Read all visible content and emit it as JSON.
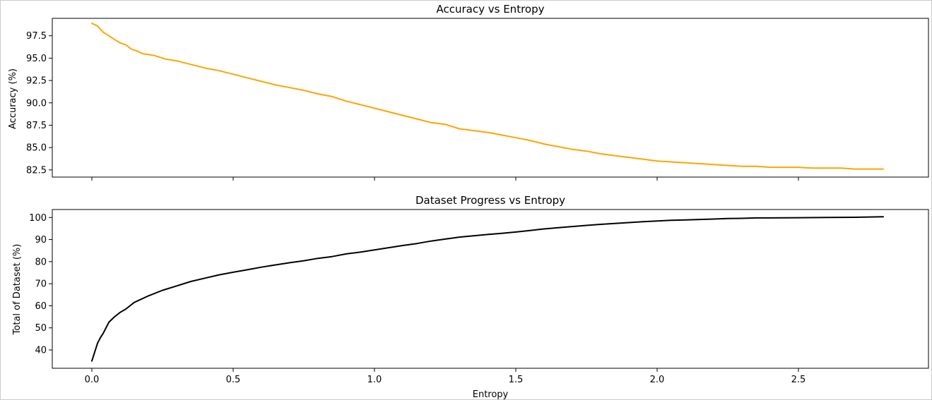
{
  "chart_data": [
    {
      "type": "line",
      "title": "Accuracy vs Entropy",
      "xlabel": "",
      "ylabel": "Accuracy (%)",
      "xlim": [
        -0.14,
        2.96
      ],
      "ylim": [
        81.7,
        99.45
      ],
      "xticks": [
        0.0,
        0.5,
        1.0,
        1.5,
        2.0,
        2.5
      ],
      "xtick_labels_shown": false,
      "yticks": [
        82.5,
        85.0,
        87.5,
        90.0,
        92.5,
        95.0,
        97.5
      ],
      "ytick_labels": [
        "82.5",
        "85.0",
        "87.5",
        "90.0",
        "92.5",
        "95.0",
        "97.5"
      ],
      "grid": false,
      "series": [
        {
          "color": "#ffa500",
          "x": [
            0.0,
            0.02,
            0.04,
            0.06,
            0.08,
            0.1,
            0.12,
            0.14,
            0.16,
            0.18,
            0.2,
            0.22,
            0.24,
            0.26,
            0.3,
            0.35,
            0.4,
            0.45,
            0.5,
            0.55,
            0.6,
            0.65,
            0.7,
            0.75,
            0.8,
            0.85,
            0.9,
            0.95,
            1.0,
            1.05,
            1.1,
            1.15,
            1.2,
            1.25,
            1.3,
            1.35,
            1.4,
            1.45,
            1.5,
            1.55,
            1.6,
            1.65,
            1.7,
            1.75,
            1.8,
            1.85,
            1.9,
            1.95,
            2.0,
            2.05,
            2.1,
            2.15,
            2.2,
            2.25,
            2.3,
            2.35,
            2.4,
            2.45,
            2.5,
            2.55,
            2.6,
            2.65,
            2.7,
            2.75,
            2.8
          ],
          "y": [
            98.9,
            98.6,
            97.9,
            97.5,
            97.1,
            96.7,
            96.5,
            96.0,
            95.8,
            95.5,
            95.4,
            95.3,
            95.1,
            94.9,
            94.7,
            94.3,
            93.9,
            93.6,
            93.2,
            92.8,
            92.4,
            92.0,
            91.7,
            91.4,
            91.0,
            90.7,
            90.2,
            89.8,
            89.4,
            89.0,
            88.6,
            88.2,
            87.8,
            87.6,
            87.1,
            86.9,
            86.7,
            86.4,
            86.1,
            85.8,
            85.4,
            85.1,
            84.8,
            84.6,
            84.3,
            84.1,
            83.9,
            83.7,
            83.5,
            83.4,
            83.3,
            83.2,
            83.1,
            83.0,
            82.9,
            82.9,
            82.8,
            82.8,
            82.8,
            82.7,
            82.7,
            82.7,
            82.6,
            82.6,
            82.6
          ]
        }
      ]
    },
    {
      "type": "line",
      "title": "Dataset Progress vs Entropy",
      "xlabel": "Entropy",
      "ylabel": "Total of Dataset (%)",
      "xlim": [
        -0.14,
        2.96
      ],
      "ylim": [
        31.7,
        103.6
      ],
      "xticks": [
        0.0,
        0.5,
        1.0,
        1.5,
        2.0,
        2.5
      ],
      "xtick_labels": [
        "0.0",
        "0.5",
        "1.0",
        "1.5",
        "2.0",
        "2.5"
      ],
      "yticks": [
        40,
        50,
        60,
        70,
        80,
        90,
        100
      ],
      "ytick_labels": [
        "40",
        "50",
        "60",
        "70",
        "80",
        "90",
        "100"
      ],
      "grid": false,
      "series": [
        {
          "color": "#000000",
          "x": [
            0.0,
            0.01,
            0.02,
            0.03,
            0.04,
            0.06,
            0.08,
            0.1,
            0.12,
            0.15,
            0.2,
            0.25,
            0.3,
            0.35,
            0.4,
            0.45,
            0.5,
            0.55,
            0.6,
            0.65,
            0.7,
            0.75,
            0.8,
            0.85,
            0.9,
            0.95,
            1.0,
            1.05,
            1.1,
            1.15,
            1.2,
            1.25,
            1.3,
            1.35,
            1.4,
            1.45,
            1.5,
            1.55,
            1.6,
            1.65,
            1.7,
            1.75,
            1.8,
            1.85,
            1.9,
            1.95,
            2.0,
            2.05,
            2.1,
            2.15,
            2.2,
            2.25,
            2.3,
            2.35,
            2.4,
            2.5,
            2.6,
            2.7,
            2.8
          ],
          "y": [
            35.0,
            39.0,
            43.0,
            45.5,
            47.5,
            52.5,
            55.0,
            57.0,
            58.5,
            61.5,
            64.5,
            67.0,
            69.0,
            71.0,
            72.5,
            74.0,
            75.2,
            76.3,
            77.5,
            78.5,
            79.5,
            80.4,
            81.5,
            82.3,
            83.5,
            84.3,
            85.3,
            86.3,
            87.3,
            88.2,
            89.3,
            90.2,
            91.1,
            91.7,
            92.3,
            92.8,
            93.4,
            94.1,
            94.8,
            95.4,
            95.9,
            96.4,
            96.9,
            97.3,
            97.7,
            98.1,
            98.4,
            98.7,
            98.9,
            99.1,
            99.3,
            99.5,
            99.6,
            99.8,
            99.8,
            99.9,
            100.0,
            100.1,
            100.3
          ]
        }
      ]
    }
  ]
}
